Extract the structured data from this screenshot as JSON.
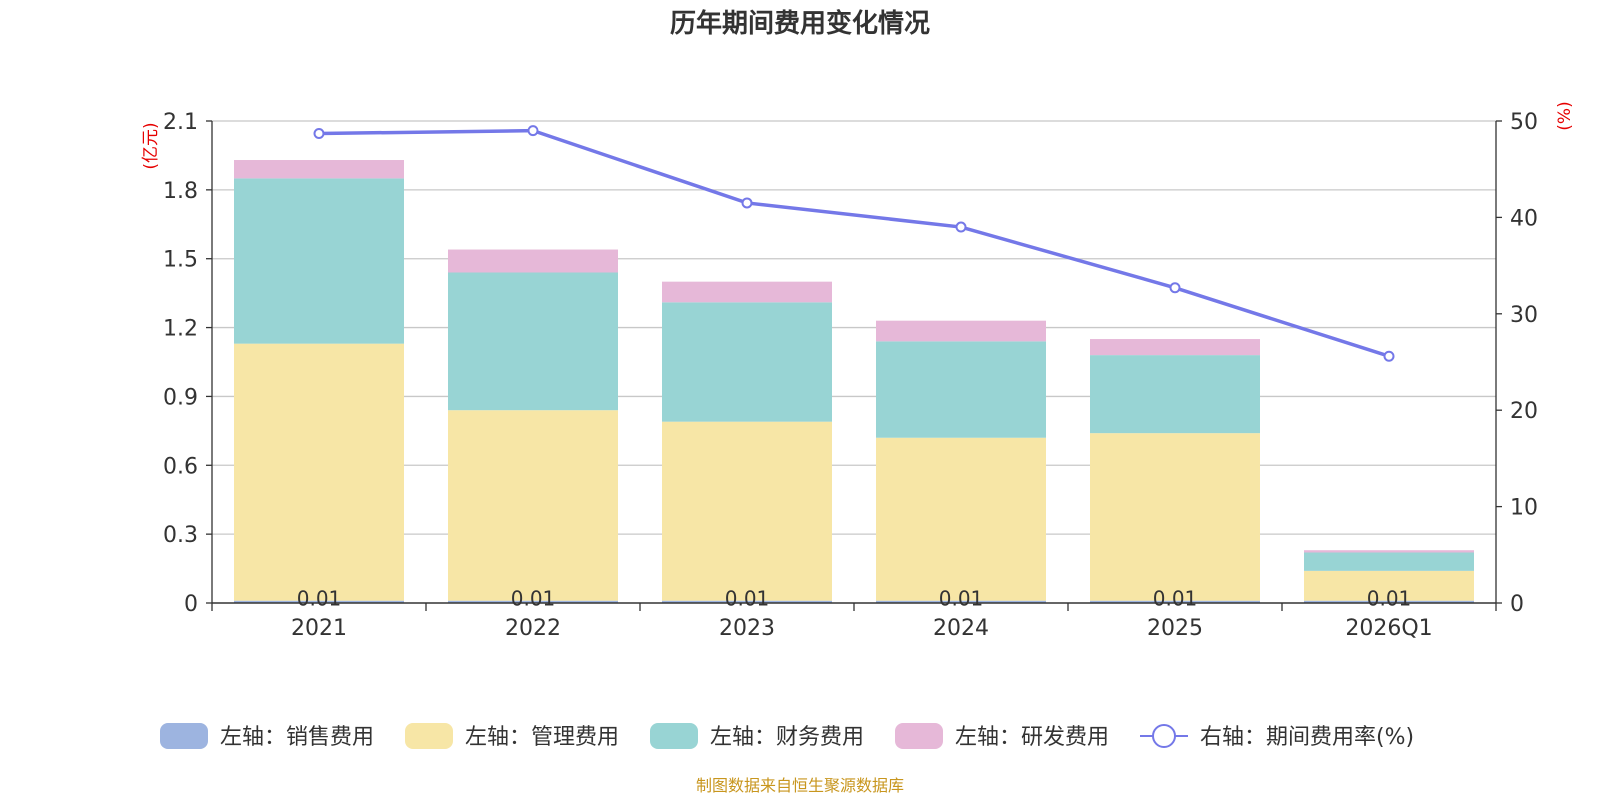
{
  "chart_data": {
    "type": "bar",
    "stacked": true,
    "title": "历年期间费用变化情况",
    "categories": [
      "2021",
      "2022",
      "2023",
      "2024",
      "2025",
      "2026Q1"
    ],
    "y_left": {
      "unit": "(亿元)",
      "min": 0,
      "max": 2.1,
      "ticks": [
        "0",
        "0.3",
        "0.6",
        "0.9",
        "1.2",
        "1.5",
        "1.8",
        "2.1"
      ]
    },
    "y_right": {
      "unit": "(%)",
      "min": 0,
      "max": 50,
      "ticks": [
        "0",
        "10",
        "20",
        "30",
        "40",
        "50"
      ]
    },
    "series": [
      {
        "name": "左轴：销售费用",
        "color": "#9db4e0",
        "axis": "left",
        "values": [
          0.01,
          0.01,
          0.01,
          0.01,
          0.01,
          0.01
        ],
        "labels": [
          "0.01",
          "0.01",
          "0.01",
          "0.01",
          "0.01",
          "0.01"
        ]
      },
      {
        "name": "左轴：管理费用",
        "color": "#f7e6a6",
        "axis": "left",
        "values": [
          1.12,
          0.83,
          0.78,
          0.71,
          0.73,
          0.13
        ]
      },
      {
        "name": "左轴：财务费用",
        "color": "#98d4d4",
        "axis": "left",
        "values": [
          0.72,
          0.6,
          0.52,
          0.42,
          0.34,
          0.08
        ]
      },
      {
        "name": "左轴：研发费用",
        "color": "#e6b8d8",
        "axis": "left",
        "values": [
          0.08,
          0.1,
          0.09,
          0.09,
          0.07,
          0.01
        ]
      },
      {
        "name": "右轴：期间费用率(%)",
        "type": "line",
        "color": "#7478e8",
        "axis": "right",
        "values": [
          48.7,
          49.0,
          41.5,
          39.0,
          32.7,
          25.6
        ]
      }
    ],
    "grid": true,
    "legend": "bottom"
  },
  "footer": {
    "source": "制图数据来自恒生聚源数据库"
  }
}
